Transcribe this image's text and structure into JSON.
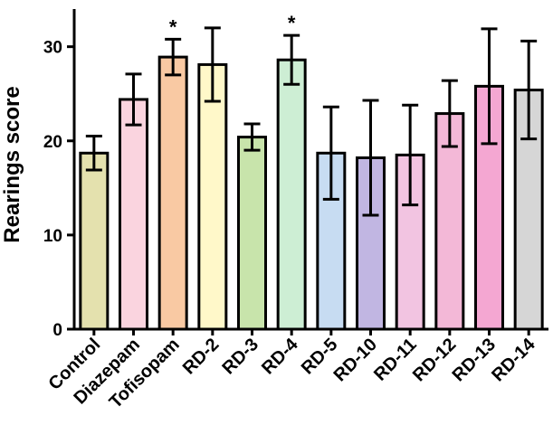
{
  "chart_data": {
    "type": "bar",
    "title": "",
    "xlabel": "",
    "ylabel": "Rearings score",
    "ylim": [
      0,
      34
    ],
    "yticks": [
      0,
      10,
      20,
      30
    ],
    "grid": false,
    "legend": "none",
    "categories": [
      "Control",
      "Diazepam",
      "Tofisopam",
      "RD-2",
      "RD-3",
      "RD-4",
      "RD-5",
      "RD-10",
      "RD-11",
      "RD-12",
      "RD-13",
      "RD-14"
    ],
    "values": [
      18.7,
      24.4,
      28.9,
      28.1,
      20.4,
      28.6,
      18.7,
      18.2,
      18.5,
      22.9,
      25.8,
      25.4
    ],
    "errors": [
      1.8,
      2.7,
      1.9,
      3.9,
      1.4,
      2.6,
      4.9,
      6.1,
      5.3,
      3.5,
      6.1,
      5.2
    ],
    "significance": [
      "",
      "",
      "*",
      "",
      "",
      "*",
      "",
      "",
      "",
      "",
      "",
      ""
    ],
    "colors": [
      "#e4e1ae",
      "#fad4df",
      "#f9c9a3",
      "#fff8c9",
      "#c8e4ab",
      "#cdeed4",
      "#c7dcf2",
      "#c1b6e2",
      "#f2c4e1",
      "#f3b8d7",
      "#f4a7d2",
      "#d6d6d6"
    ]
  }
}
